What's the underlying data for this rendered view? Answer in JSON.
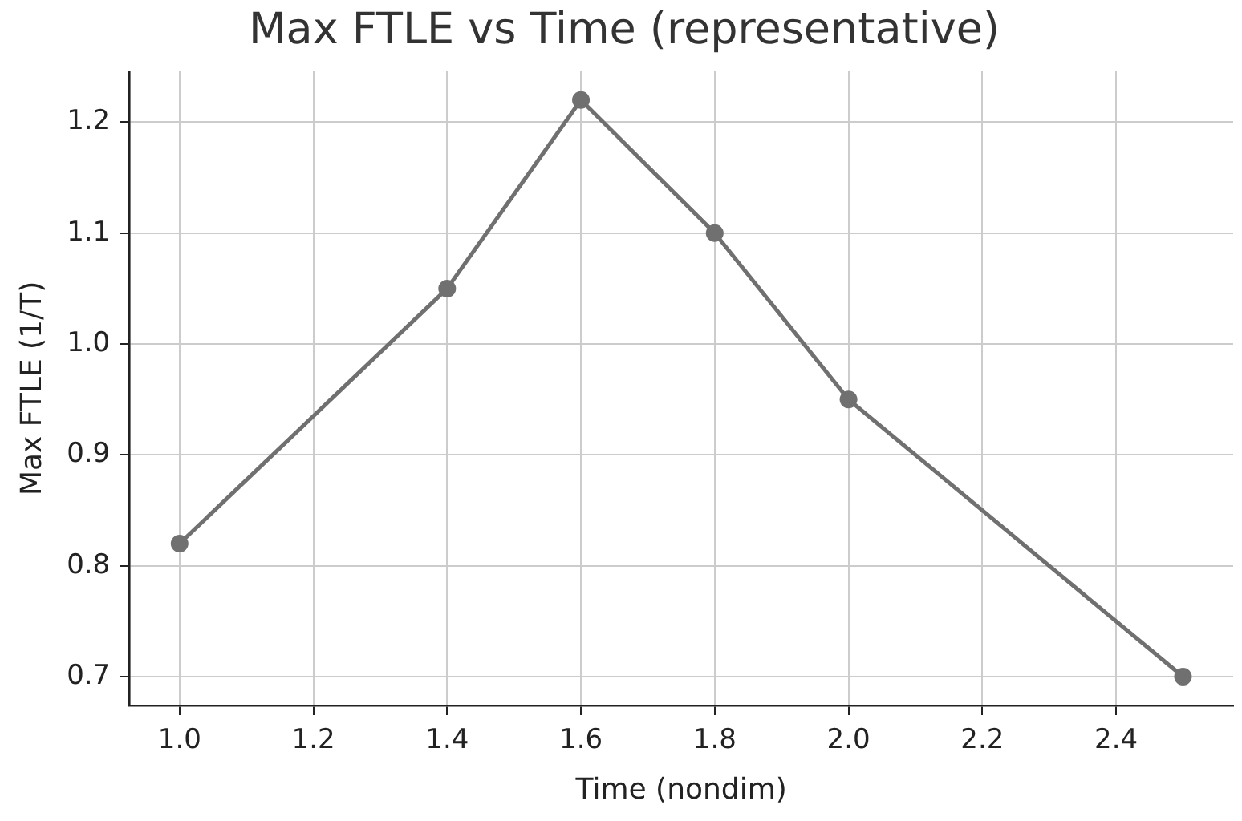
{
  "chart_data": {
    "type": "line",
    "title": "Max FTLE vs Time (representative)",
    "xlabel": "Time (nondim)",
    "ylabel": "Max FTLE (1/T)",
    "x": [
      1.0,
      1.4,
      1.6,
      1.8,
      2.0,
      2.5
    ],
    "series": [
      {
        "color": "#707070",
        "values": [
          0.82,
          1.05,
          1.22,
          1.1,
          0.95,
          0.7
        ]
      }
    ],
    "xlim": [
      0.925,
      2.575
    ],
    "ylim": [
      0.674,
      1.246
    ],
    "xticks": [
      {
        "value": 1.0,
        "label": "1.0"
      },
      {
        "value": 1.2,
        "label": "1.2"
      },
      {
        "value": 1.4,
        "label": "1.4"
      },
      {
        "value": 1.6,
        "label": "1.6"
      },
      {
        "value": 1.8,
        "label": "1.8"
      },
      {
        "value": 2.0,
        "label": "2.0"
      },
      {
        "value": 2.2,
        "label": "2.2"
      },
      {
        "value": 2.4,
        "label": "2.4"
      }
    ],
    "yticks": [
      0.7,
      0.8,
      0.9,
      {
        "value": 1.0,
        "label": "1.0"
      },
      1.1,
      1.2
    ],
    "grid": true,
    "marker": "circle",
    "line_style": "solid"
  }
}
